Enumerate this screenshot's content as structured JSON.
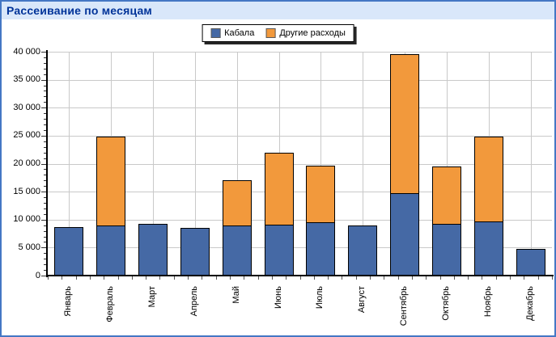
{
  "header": {
    "title": "Рассеивание по месяцам"
  },
  "legend": {
    "items": [
      {
        "label": "Кабала",
        "color": "#4569A5"
      },
      {
        "label": "Другие расходы",
        "color": "#F2993C"
      }
    ]
  },
  "colors": {
    "header_bg": "#D9E7FA",
    "header_text": "#003399",
    "page_border": "#4477C4",
    "gridline": "#C9C9C9",
    "series_blue": "#4569A5",
    "series_orange": "#F2993C"
  },
  "chart_data": {
    "type": "bar",
    "stacked": true,
    "title": "Рассеивание по месяцам",
    "categories": [
      "Январь",
      "Февраль",
      "Март",
      "Апрель",
      "Май",
      "Июнь",
      "Июль",
      "Август",
      "Сентябрь",
      "Октябрь",
      "Ноябрь",
      "Декабрь"
    ],
    "series": [
      {
        "name": "Кабала",
        "color": "#4569A5",
        "values": [
          8700,
          9000,
          9300,
          8500,
          8900,
          9100,
          9500,
          8900,
          14800,
          9300,
          9700,
          4700
        ]
      },
      {
        "name": "Другие расходы",
        "color": "#F2993C",
        "values": [
          0,
          15900,
          0,
          0,
          8100,
          12900,
          10200,
          0,
          24700,
          10200,
          15100,
          0
        ]
      }
    ],
    "totals": [
      8700,
      24900,
      9300,
      8500,
      17000,
      22000,
      19700,
      8900,
      39500,
      19500,
      24800,
      4700
    ],
    "xlabel": "",
    "ylabel": "",
    "ylim": [
      0,
      40000
    ],
    "ytick_step": 5000,
    "ytick_minor_step": 1000,
    "ytick_labels": [
      "0",
      "5 000",
      "10 000",
      "15 000",
      "20 000",
      "25 000",
      "30 000",
      "35 000",
      "40 000"
    ],
    "grid": true,
    "legend_position": "top-center"
  }
}
